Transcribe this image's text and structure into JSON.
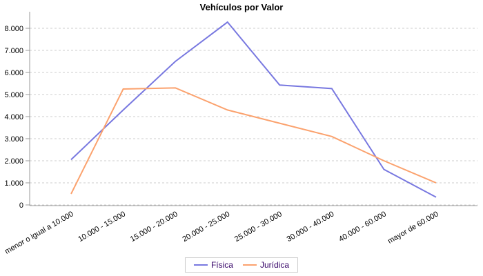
{
  "chart_data": {
    "type": "line",
    "title": "Vehículos por Valor",
    "categories": [
      "menor o igual a 10.000",
      "10.000 - 15.000",
      "15.000 - 20.000",
      "20.000 - 25.000",
      "25.000 - 30.000",
      "30.000 - 40.000",
      "40.000 - 60.000",
      "mayor de 60.000"
    ],
    "series": [
      {
        "name": "Física",
        "color": "#7878e0",
        "values": [
          2050,
          4300,
          6500,
          8280,
          5430,
          5270,
          1610,
          350
        ]
      },
      {
        "name": "Jurídica",
        "color": "#fba26e",
        "values": [
          500,
          5250,
          5300,
          4300,
          3700,
          3100,
          2000,
          1000
        ]
      }
    ],
    "y_ticks": [
      "0",
      "1.000",
      "2.000",
      "3.000",
      "4.000",
      "5.000",
      "6.000",
      "7.000",
      "8.000"
    ],
    "y_tick_values": [
      0,
      1000,
      2000,
      3000,
      4000,
      5000,
      6000,
      7000,
      8000
    ],
    "ylim": [
      0,
      8750
    ],
    "grid": true,
    "legend_position": "bottom",
    "colors": {
      "grid_line": "#cccccc",
      "axis_line": "#999999",
      "tick_label": "#000000",
      "legend_text": "#330066",
      "legend_border": "#cccccc",
      "background": "#ffffff"
    }
  }
}
